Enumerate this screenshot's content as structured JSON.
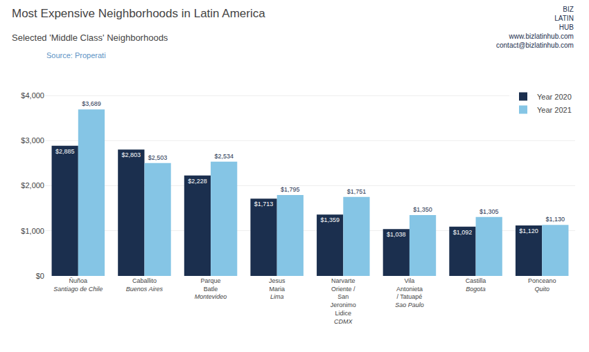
{
  "chart_data": {
    "type": "bar",
    "title": "Most Expensive Neighborhoods in Latin America",
    "subtitle": "Selected 'Middle Class' Neighborhoods",
    "annotations": [
      "Source: Properati",
      "BIZ",
      "LATIN",
      "HUB",
      "www.bizlatinhub.com",
      "contact@bizlatinhub.com"
    ],
    "categories": [
      "Ñuñoa\nSantiago de Chile",
      "Caballito\nBuenos Aires",
      "Parque\nBatle\nMontevideo",
      "Jesus\nMaria\nLima",
      "Narvarte\nOriente /\nSan\nJeronimo\nLidice\nCDMX",
      "Vila\nAntonieta\n/ Tatuapé\nSao Paulo",
      "Castilla\nBogota",
      "Ponceano\nQuito"
    ],
    "series": [
      {
        "name": "Year 2020",
        "color": "#1b2f4e",
        "values": [
          2885,
          2803,
          2228,
          1713,
          1359,
          1038,
          1092,
          1120
        ],
        "value_labels": [
          "$2,885",
          "$2,803",
          "$2,228",
          "$1,713",
          "$1,359",
          "$1,038",
          "$1,092",
          "$1,120"
        ]
      },
      {
        "name": "Year 2021",
        "color": "#85c5e5",
        "values": [
          3689,
          2503,
          2534,
          1795,
          1751,
          1350,
          1305,
          1130
        ],
        "value_labels": [
          "$3,689",
          "$2,503",
          "$2,534",
          "$1,795",
          "$1,751",
          "$1,350",
          "$1,305",
          "$1,130"
        ]
      }
    ],
    "ylim": [
      0,
      4200
    ],
    "yticks": [
      {
        "value": 0,
        "label": "$0"
      },
      {
        "value": 1000,
        "label": "$1,000"
      },
      {
        "value": 2000,
        "label": "$2,000"
      },
      {
        "value": 3000,
        "label": "$3,000"
      },
      {
        "value": 4000,
        "label": "$4,000"
      }
    ],
    "grid": true,
    "legend": "upper right",
    "data_labels": true
  }
}
